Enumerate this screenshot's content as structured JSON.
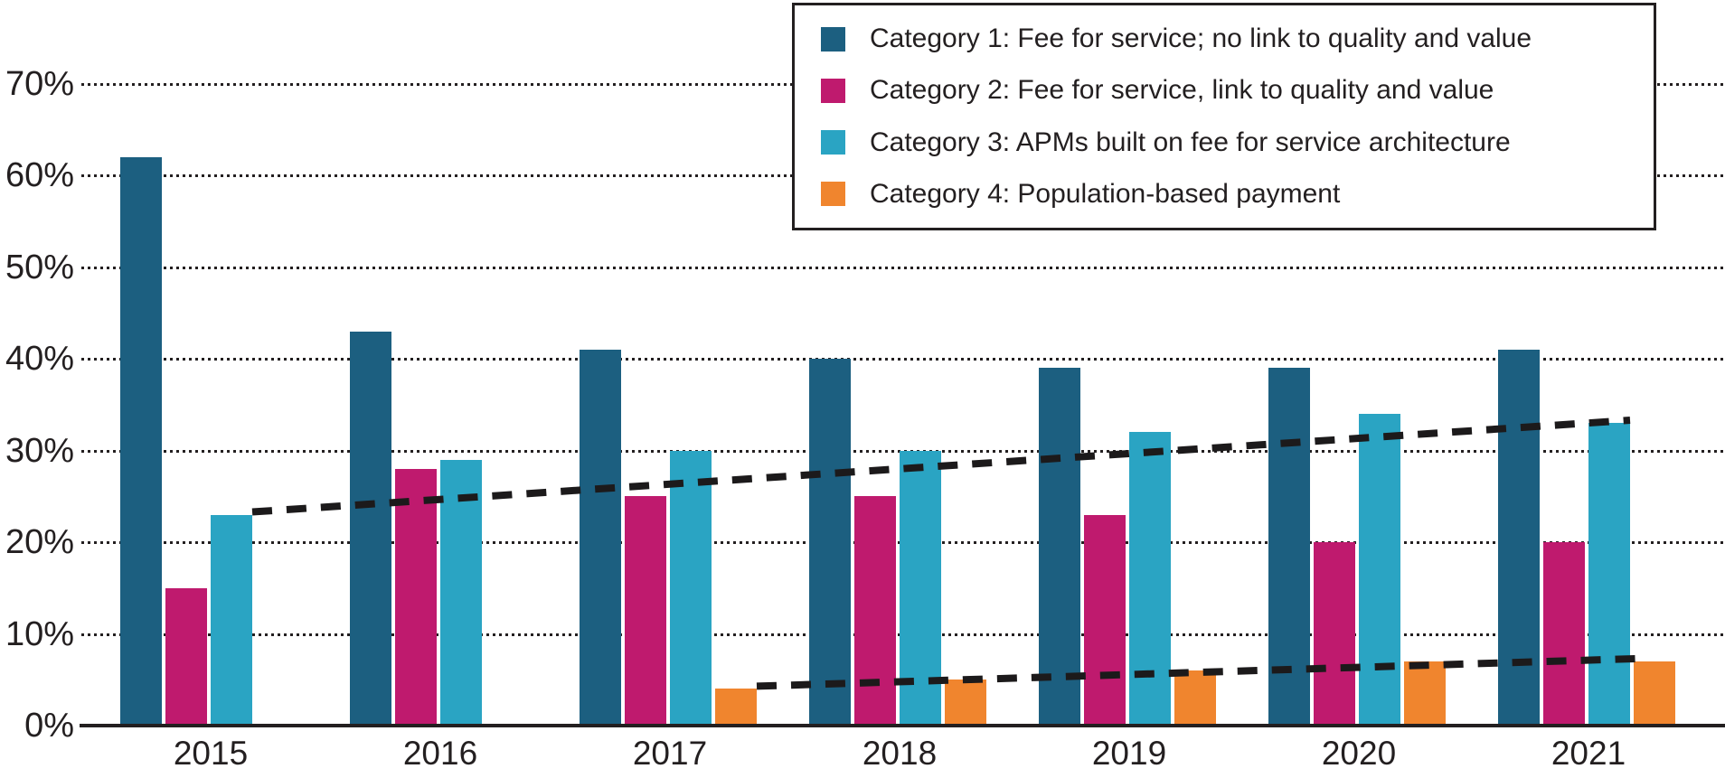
{
  "chart_data": {
    "type": "bar",
    "title": "",
    "categories": [
      "2015",
      "2016",
      "2017",
      "2018",
      "2019",
      "2020",
      "2021"
    ],
    "series": [
      {
        "name": "Category 1: Fee for service; no link to quality and value",
        "color": "#1c5f80",
        "values": [
          62,
          43,
          41,
          40,
          39,
          39,
          41
        ]
      },
      {
        "name": "Category 2: Fee for service, link to quality and value",
        "color": "#bf1a6e",
        "values": [
          15,
          28,
          25,
          25,
          23,
          20,
          20
        ]
      },
      {
        "name": "Category 3: APMs built on fee for service architecture",
        "color": "#2aa4c3",
        "values": [
          23,
          29,
          30,
          30,
          32,
          34,
          33
        ]
      },
      {
        "name": "Category 4: Population-based payment",
        "color": "#f0852e",
        "values": [
          null,
          null,
          4,
          5,
          6,
          7,
          7
        ]
      }
    ],
    "ylabel": "",
    "xlabel": "",
    "ylim": [
      0,
      75
    ],
    "y_tick_labels": [
      "0%",
      "10%",
      "20%",
      "30%",
      "40%",
      "50%",
      "60%",
      "70%"
    ],
    "grid": "horizontal-dotted",
    "legend_position": "top-right",
    "trend_lines": [
      {
        "name": "category-3-trend",
        "series": 3,
        "style": "dashed",
        "color": "#1c1a1b",
        "from": {
          "year": "2015",
          "value": 23,
          "edge": "right"
        },
        "to": {
          "year": "2021",
          "value": 33,
          "edge": "right"
        }
      },
      {
        "name": "category-4-trend",
        "series": 4,
        "style": "dashed",
        "color": "#1c1a1b",
        "from": {
          "year": "2017",
          "value": 4,
          "edge": "right"
        },
        "to": {
          "year": "2021",
          "value": 7,
          "edge": "left"
        }
      }
    ]
  },
  "axis_colors": {
    "text": "#231f20",
    "axis_line": "#231f20",
    "gridline": "#231f20"
  }
}
